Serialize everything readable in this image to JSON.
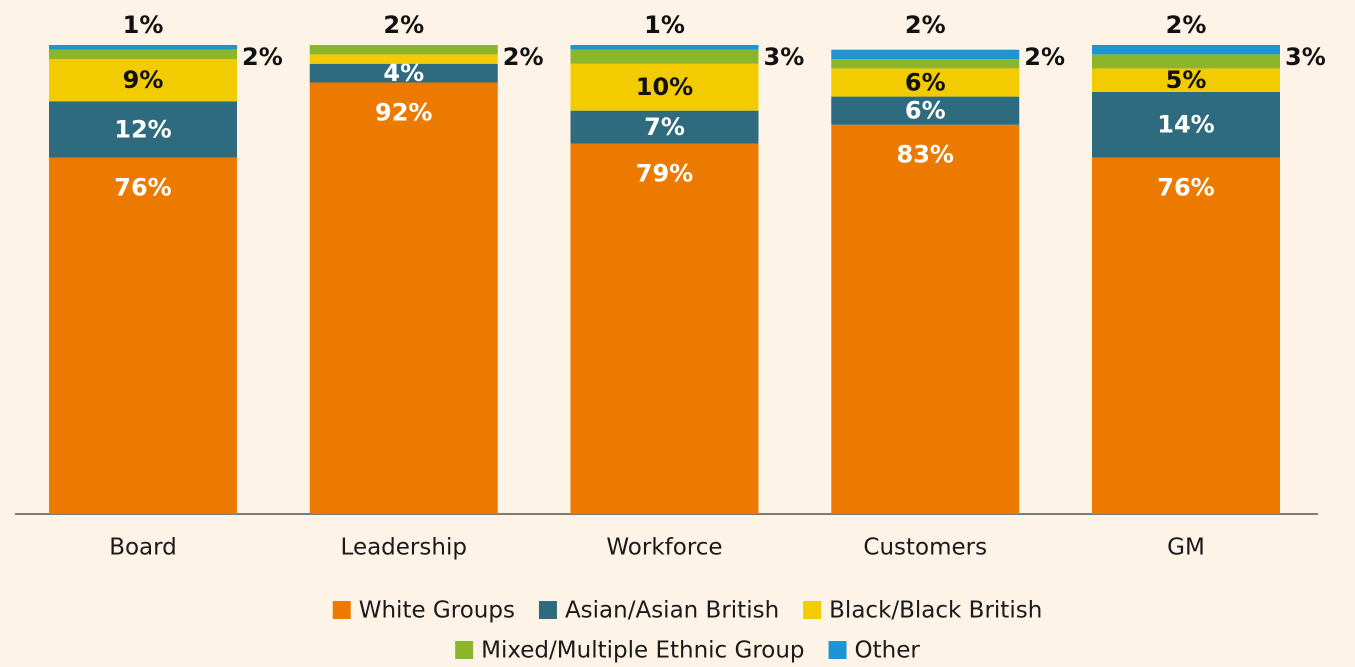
{
  "chart_data": {
    "type": "stacked_bar",
    "categories": [
      "Board",
      "Leadership",
      "Workforce",
      "Customers",
      "GM"
    ],
    "ylim": [
      0,
      100
    ],
    "series": [
      {
        "name": "White Groups",
        "color": "#ec7a00",
        "values": [
          76,
          92,
          79,
          83,
          76
        ],
        "value_labels": [
          "76%",
          "92%",
          "79%",
          "83%",
          "76%"
        ]
      },
      {
        "name": "Asian/Asian British",
        "color": "#2e6b7e",
        "values": [
          12,
          4,
          7,
          6,
          14
        ],
        "value_labels": [
          "12%",
          "4%",
          "7%",
          "6%",
          "14%"
        ]
      },
      {
        "name": "Black/Black British",
        "color": "#f2cc00",
        "values": [
          9,
          2,
          10,
          6,
          5
        ],
        "value_labels": [
          "9%",
          "2%",
          "10%",
          "6%",
          "5%"
        ]
      },
      {
        "name": "Mixed/Multiple Ethnic Group",
        "color": "#8db52c",
        "values": [
          2,
          2,
          3,
          2,
          3
        ],
        "value_labels": [
          "2%",
          "2%",
          "3%",
          "2%",
          "3%"
        ]
      },
      {
        "name": "Other",
        "color": "#1f94d2",
        "values": [
          1,
          0,
          1,
          2,
          2
        ],
        "value_labels": [
          "1%",
          null,
          "1%",
          "2%",
          "2%"
        ]
      }
    ]
  }
}
